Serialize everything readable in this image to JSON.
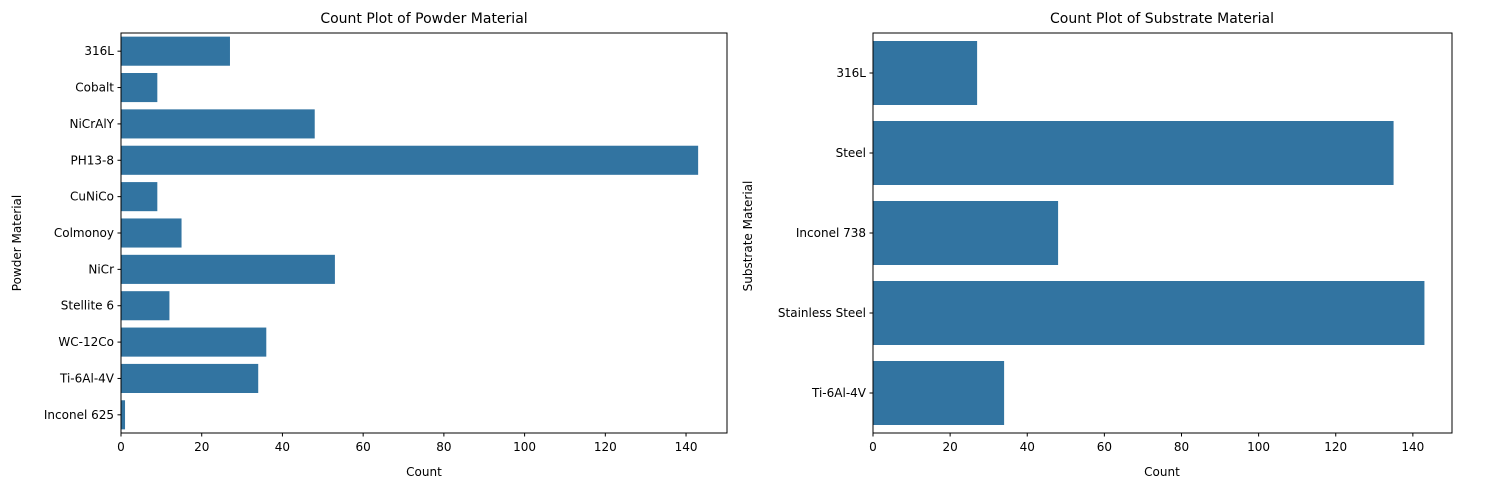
{
  "chart_data": [
    {
      "type": "bar",
      "orientation": "horizontal",
      "title": "Count Plot of Powder Material",
      "xlabel": "Count",
      "ylabel": "Powder Material",
      "xlim": [
        0,
        150.15
      ],
      "xticks": [
        0,
        20,
        40,
        60,
        80,
        100,
        120,
        140
      ],
      "categories": [
        "316L",
        "Cobalt",
        "NiCrAlY",
        "PH13-8",
        "CuNiCo",
        "Colmonoy",
        "NiCr",
        "Stellite 6",
        "WC-12Co",
        "Ti-6Al-4V",
        "Inconel 625"
      ],
      "values": [
        27,
        9,
        48,
        143,
        9,
        15,
        53,
        12,
        36,
        34,
        1
      ],
      "bar_color": "#3274a1",
      "grid": false,
      "legend": "none"
    },
    {
      "type": "bar",
      "orientation": "horizontal",
      "title": "Count Plot of Substrate Material",
      "xlabel": "Count",
      "ylabel": "Substrate Material",
      "xlim": [
        0,
        150.15
      ],
      "xticks": [
        0,
        20,
        40,
        60,
        80,
        100,
        120,
        140
      ],
      "categories": [
        "316L",
        "Steel",
        "Inconel 738",
        "Stainless Steel",
        "Ti-6Al-4V"
      ],
      "values": [
        27,
        135,
        48,
        143,
        34
      ],
      "bar_color": "#3274a1",
      "grid": false,
      "legend": "none"
    }
  ]
}
